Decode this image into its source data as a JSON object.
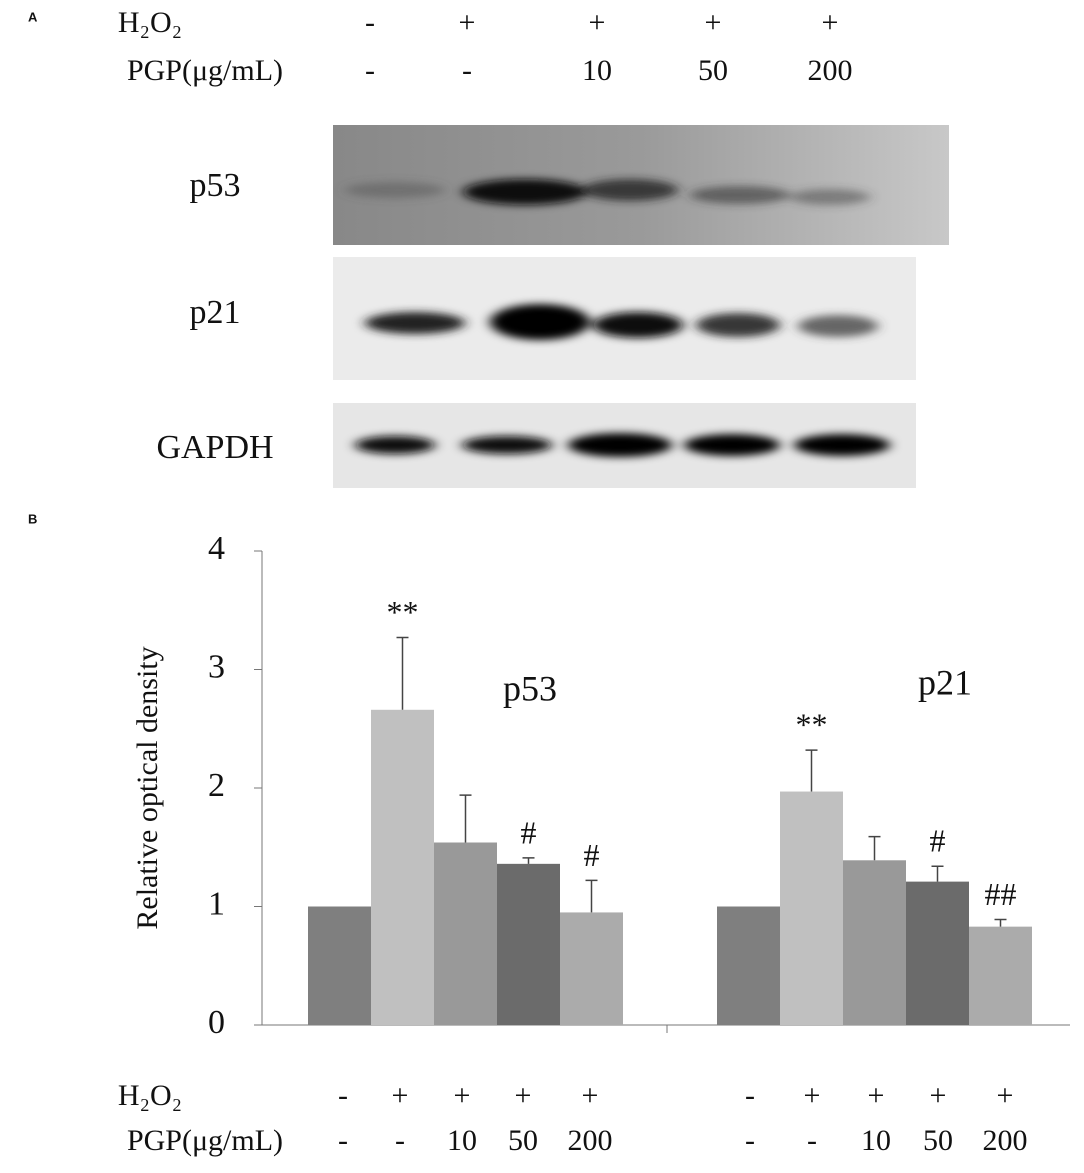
{
  "panel_a": {
    "label": "A",
    "treatments": [
      {
        "name": "H₂O₂",
        "values": [
          "-",
          "+",
          "+",
          "+",
          "+"
        ]
      },
      {
        "name": "PGP(μg/mL)",
        "values": [
          "-",
          "-",
          "10",
          "50",
          "200"
        ]
      }
    ],
    "blots": [
      "p53",
      "p21",
      "GAPDH"
    ]
  },
  "chart_data": {
    "type": "bar",
    "panel_label": "B",
    "y_label": "Relative optical density",
    "categories": [
      "p53",
      "p21"
    ],
    "ylim": [
      0,
      4
    ],
    "yticks": [
      0,
      1,
      2,
      3,
      4
    ],
    "treatments": [
      {
        "name": "H₂O₂",
        "values": [
          "-",
          "+",
          "+",
          "+",
          "+"
        ]
      },
      {
        "name": "PGP(μg/mL)",
        "values": [
          "-",
          "-",
          "10",
          "50",
          "200"
        ]
      }
    ],
    "series": [
      {
        "color": "#7f7f7f",
        "values": [
          1.0,
          1.0
        ],
        "errors": [
          null,
          null
        ],
        "annotations": [
          null,
          null
        ]
      },
      {
        "color": "#c0c0c0",
        "values": [
          2.66,
          1.97
        ],
        "errors": [
          0.61,
          0.35
        ],
        "annotations": [
          "**",
          "**"
        ]
      },
      {
        "color": "#999999",
        "values": [
          1.54,
          1.39
        ],
        "errors": [
          0.4,
          0.2
        ],
        "annotations": [
          null,
          null
        ]
      },
      {
        "color": "#6b6b6b",
        "values": [
          1.36,
          1.21
        ],
        "errors": [
          0.05,
          0.13
        ],
        "annotations": [
          "#",
          "#"
        ]
      },
      {
        "color": "#ababab",
        "values": [
          0.95,
          0.83
        ],
        "errors": [
          0.27,
          0.06
        ],
        "annotations": [
          "#",
          "##"
        ]
      }
    ]
  }
}
